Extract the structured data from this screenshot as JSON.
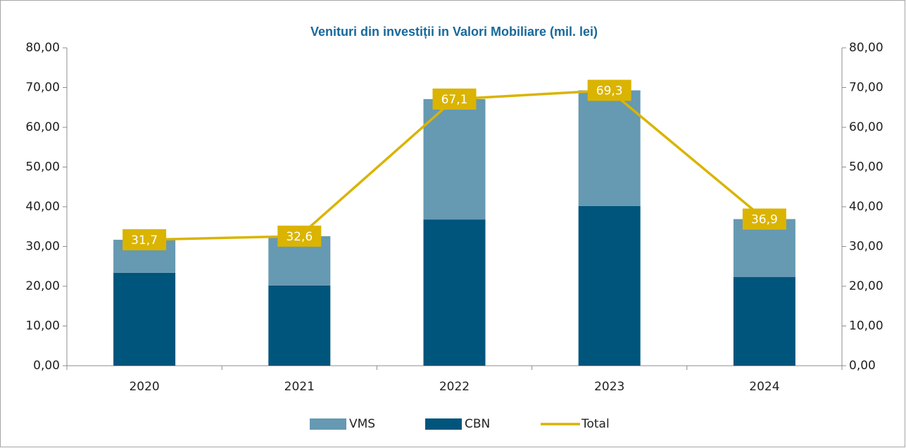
{
  "chart_data": {
    "type": "bar",
    "stacked": true,
    "title": "Venituri din investiții in Valori Mobiliare (mil. lei)",
    "categories": [
      "2020",
      "2021",
      "2022",
      "2023",
      "2024"
    ],
    "series": [
      {
        "name": "VMS",
        "color": "#6699b2",
        "values": [
          8.3,
          12.4,
          30.3,
          29.1,
          14.6
        ]
      },
      {
        "name": "CBN",
        "color": "#00557c",
        "values": [
          23.4,
          20.2,
          36.8,
          40.2,
          22.3
        ]
      },
      {
        "name": "Total",
        "type": "line",
        "axis": "y2",
        "color": "#dab400",
        "values": [
          31.7,
          32.6,
          67.1,
          69.3,
          36.9
        ],
        "value_labels": [
          "31,7",
          "32,6",
          "67,1",
          "69,3",
          "36,9"
        ]
      }
    ],
    "ylim": [
      0,
      80
    ],
    "yticks": [
      {
        "value": 0,
        "label": "0,00"
      },
      {
        "value": 10,
        "label": "10,00"
      },
      {
        "value": 20,
        "label": "20,00"
      },
      {
        "value": 30,
        "label": "30,00"
      },
      {
        "value": 40,
        "label": "40,00"
      },
      {
        "value": 50,
        "label": "50,00"
      },
      {
        "value": 60,
        "label": "60,00"
      },
      {
        "value": 70,
        "label": "70,00"
      },
      {
        "value": 80,
        "label": "80,00"
      }
    ],
    "y2lim": [
      0,
      80
    ],
    "y2ticks": [
      {
        "value": 0,
        "label": "0,00"
      },
      {
        "value": 10,
        "label": "10,00"
      },
      {
        "value": 20,
        "label": "20,00"
      },
      {
        "value": 30,
        "label": "30,00"
      },
      {
        "value": 40,
        "label": "40,00"
      },
      {
        "value": 50,
        "label": "50,00"
      },
      {
        "value": 60,
        "label": "60,00"
      },
      {
        "value": 70,
        "label": "70,00"
      },
      {
        "value": 80,
        "label": "80,00"
      }
    ],
    "grid": false,
    "legend": "bottom"
  }
}
